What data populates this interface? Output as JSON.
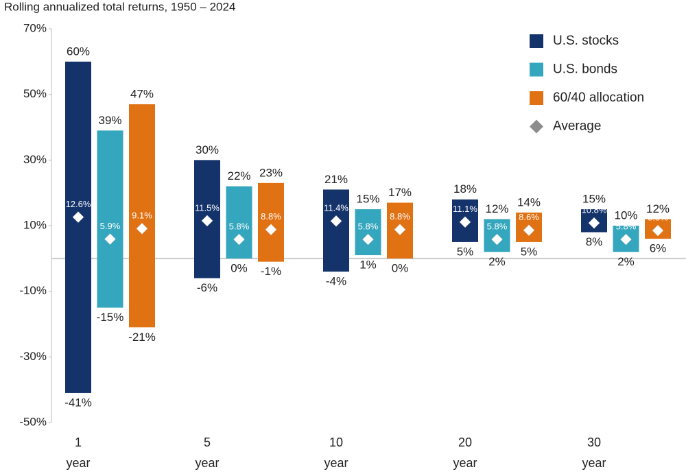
{
  "chart_data": {
    "type": "range-bar",
    "title": "Rolling annualized total returns, 1950 – 2024",
    "categories": [
      "1 year",
      "5 year",
      "10 year",
      "20 year",
      "30 year"
    ],
    "ylim": [
      -50,
      70
    ],
    "yticks": [
      {
        "value": -50,
        "label": "-50%"
      },
      {
        "value": -30,
        "label": "-30%"
      },
      {
        "value": -10,
        "label": "-10%"
      },
      {
        "value": 10,
        "label": "10%"
      },
      {
        "value": 30,
        "label": "30%"
      },
      {
        "value": 50,
        "label": "50%"
      },
      {
        "value": 70,
        "label": "70%"
      }
    ],
    "legend": "top-right",
    "average_name": "Average",
    "average_legend_color": "#8c8c8c",
    "series": [
      {
        "name": "U.S. stocks",
        "color": "#14336b",
        "high": [
          60,
          30,
          21,
          18,
          15
        ],
        "high_labels": [
          "60%",
          "30%",
          "21%",
          "18%",
          "15%"
        ],
        "low": [
          -41,
          -6,
          -4,
          5,
          8
        ],
        "low_labels": [
          "-41%",
          "-6%",
          "-4%",
          "5%",
          "8%"
        ],
        "average": [
          12.6,
          11.5,
          11.4,
          11.1,
          10.8
        ],
        "average_labels": [
          "12.6%",
          "11.5%",
          "11.4%",
          "11.1%",
          "10.8%"
        ]
      },
      {
        "name": "U.S. bonds",
        "color": "#34a6bd",
        "high": [
          39,
          22,
          15,
          12,
          10
        ],
        "high_labels": [
          "39%",
          "22%",
          "15%",
          "12%",
          "10%"
        ],
        "low": [
          -15,
          0,
          1,
          2,
          2
        ],
        "low_labels": [
          "-15%",
          "0%",
          "1%",
          "2%",
          "2%"
        ],
        "average": [
          5.9,
          5.8,
          5.8,
          5.8,
          5.8
        ],
        "average_labels": [
          "5.9%",
          "5.8%",
          "5.8%",
          "5.8%",
          "5.8%"
        ]
      },
      {
        "name": "60/40 allocation",
        "color": "#e07214",
        "high": [
          47,
          23,
          17,
          14,
          12
        ],
        "high_labels": [
          "47%",
          "23%",
          "17%",
          "14%",
          "12%"
        ],
        "low": [
          -21,
          -1,
          0,
          5,
          6
        ],
        "low_labels": [
          "-21%",
          "-1%",
          "0%",
          "5%",
          "6%"
        ],
        "average": [
          9.1,
          8.8,
          8.8,
          8.6,
          8.5
        ],
        "average_labels": [
          "9.1%",
          "8.8%",
          "8.8%",
          "8.6%",
          "8.5%"
        ]
      }
    ]
  }
}
